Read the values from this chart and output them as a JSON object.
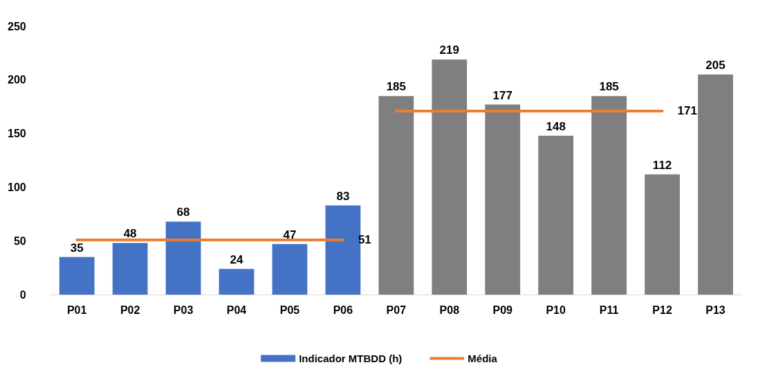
{
  "chart_data": {
    "type": "bar",
    "categories": [
      "P01",
      "P02",
      "P03",
      "P04",
      "P05",
      "P06",
      "P07",
      "P08",
      "P09",
      "P10",
      "P11",
      "P12",
      "P13"
    ],
    "series": [
      {
        "name": "Indicador MTBDD (h)",
        "color": "#4472c4",
        "colors": [
          "#4472c4",
          "#4472c4",
          "#4472c4",
          "#4472c4",
          "#4472c4",
          "#4472c4",
          "#7f7f7f",
          "#7f7f7f",
          "#7f7f7f",
          "#7f7f7f",
          "#7f7f7f",
          "#7f7f7f",
          "#7f7f7f"
        ],
        "values": [
          35,
          48,
          68,
          24,
          47,
          83,
          185,
          219,
          177,
          148,
          185,
          112,
          205
        ]
      },
      {
        "name": "Média",
        "type": "line",
        "color": "#ed7d31",
        "values": [
          51,
          51,
          51,
          51,
          51,
          51,
          null,
          null,
          null,
          null,
          null,
          null,
          null
        ],
        "value_labels": [
          null,
          null,
          null,
          null,
          null,
          "51",
          null,
          null,
          null,
          null,
          null,
          null,
          null
        ]
      },
      {
        "type": "line",
        "color": "#ed7d31",
        "values": [
          null,
          null,
          null,
          null,
          null,
          null,
          171,
          171,
          171,
          171,
          171,
          171,
          null
        ],
        "value_labels": [
          null,
          null,
          null,
          null,
          null,
          null,
          null,
          null,
          null,
          null,
          null,
          "171",
          null
        ]
      }
    ],
    "ylim": [
      0,
      250
    ],
    "yticks": [
      0,
      50,
      100,
      150,
      200,
      250
    ],
    "grid": false,
    "legend": "bottom",
    "data_labels": true,
    "marker": "none",
    "line_style": "solid"
  }
}
